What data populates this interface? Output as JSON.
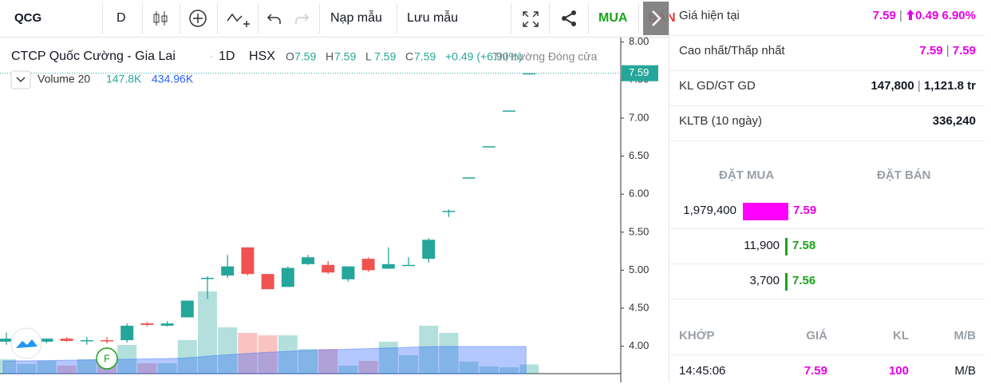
{
  "toolbar": {
    "symbol": "QCG",
    "interval": "D",
    "load": "Nạp mẫu",
    "save": "Lưu mẫu",
    "buy": "MUA",
    "sell": "BÁN"
  },
  "chart_data": {
    "type": "candlestick",
    "title": "CTCP Quốc Cường - Gia Lai",
    "interval": "1D",
    "exchange": "HSX",
    "ohlc_legend": [
      {
        "label": "O",
        "value": "7.59"
      },
      {
        "label": "H",
        "value": "7.59"
      },
      {
        "label": "L",
        "value": "7.59"
      },
      {
        "label": "C",
        "value": "7.59"
      }
    ],
    "change": "+0.49 (+6.90%)",
    "market_status": "Thị trường Đóng cửa",
    "volume_legend": {
      "name": "Volume 20",
      "volume": "147.8K",
      "ma": "434.96K"
    },
    "marker": "F",
    "last_price": 7.59,
    "ylim": [
      3.64,
      8.07
    ],
    "yticks": [
      {
        "value": 4,
        "label": "4.00"
      },
      {
        "value": 4.5,
        "label": "4.50"
      },
      {
        "value": 5,
        "label": "5.00"
      },
      {
        "value": 5.5,
        "label": "5.50"
      },
      {
        "value": 6,
        "label": "6.00"
      },
      {
        "value": 6.5,
        "label": "6.50"
      },
      {
        "value": 7,
        "label": "7.00"
      },
      {
        "value": 7.5,
        "label": "7.50"
      },
      {
        "value": 8,
        "label": "8.00"
      }
    ],
    "up_color": "#26a69a",
    "down_color": "#ef5350",
    "open": [
      4.06,
      4.07,
      4.06,
      4.1,
      4.08,
      4.08,
      4.08,
      4.3,
      4.27,
      4.38,
      4.9,
      4.93,
      5.3,
      4.95,
      4.78,
      5.08,
      5.07,
      4.88,
      5.15,
      5.02,
      5.07,
      5.15,
      5.78,
      6.22,
      6.63,
      7.1,
      7.59
    ],
    "high": [
      4.18,
      4.12,
      4.1,
      4.12,
      4.12,
      4.12,
      4.3,
      4.32,
      4.33,
      4.6,
      4.92,
      5.2,
      5.3,
      4.95,
      5.05,
      5.2,
      5.12,
      5.05,
      5.17,
      5.3,
      5.17,
      5.42,
      5.8,
      6.22,
      6.63,
      7.1,
      7.59
    ],
    "low": [
      4.02,
      4.04,
      4.04,
      4.06,
      4.02,
      4.04,
      4.05,
      4.26,
      4.26,
      4.38,
      4.62,
      4.9,
      4.93,
      4.75,
      4.78,
      5.07,
      4.95,
      4.85,
      4.98,
      5.02,
      5.07,
      5.1,
      5.7,
      6.22,
      6.63,
      7.1,
      7.59
    ],
    "close": [
      4.1,
      4.1,
      4.1,
      4.07,
      4.08,
      4.07,
      4.27,
      4.28,
      4.3,
      4.6,
      4.9,
      5.05,
      4.95,
      4.75,
      5.03,
      5.17,
      4.97,
      5.05,
      5.0,
      5.08,
      5.07,
      5.4,
      5.78,
      6.22,
      6.63,
      7.1,
      7.59
    ],
    "volume": [
      230000,
      154000,
      205000,
      128000,
      230000,
      358000,
      461000,
      166000,
      166000,
      538000,
      1318000,
      742000,
      653000,
      614000,
      614000,
      397000,
      397000,
      128000,
      205000,
      512000,
      294000,
      768000,
      653000,
      192000,
      115000,
      102000,
      147800
    ],
    "volume_ma": [
      205000,
      205000,
      210000,
      215000,
      220000,
      225000,
      230000,
      235000,
      240000,
      250000,
      275000,
      300000,
      320000,
      340000,
      355000,
      370000,
      380000,
      390000,
      400000,
      410000,
      420000,
      430000,
      435000,
      435000,
      435000,
      435000,
      434960
    ]
  },
  "panel": {
    "rows": [
      {
        "label": "Giá hiện tại",
        "values": [
          "7.59",
          "0.49 6.90%"
        ]
      },
      {
        "label": "Cao nhất/Thấp nhất",
        "values": [
          "7.59",
          "7.59"
        ]
      },
      {
        "label": "KL GD/GT GD",
        "values": [
          "147,800",
          "1,121.8 tr"
        ]
      },
      {
        "label": "KLTB (10 ngày)",
        "values": [
          "336,240"
        ]
      }
    ],
    "book_headers": [
      "ĐẶT MUA",
      "ĐẶT BÁN"
    ],
    "bids": [
      {
        "volume": "1,979,400",
        "price": "7.59"
      },
      {
        "volume": "11,900",
        "price": "7.58"
      },
      {
        "volume": "3,700",
        "price": "7.56"
      }
    ],
    "trade_headers": [
      "KHỚP",
      "GIÁ",
      "KL",
      "M/B"
    ],
    "trades": [
      [
        "14:45:06",
        "7.59",
        "100",
        "M/B"
      ]
    ]
  }
}
